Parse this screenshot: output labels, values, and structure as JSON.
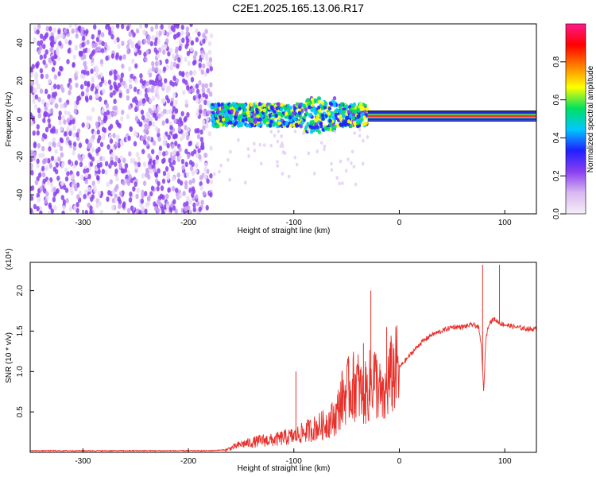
{
  "title": "C2E1.2025.165.13.06.R17",
  "colors": {
    "snr_line": "#e8302a",
    "colormap": [
      "#f6eef8",
      "#d9b8f0",
      "#8a3ff0",
      "#2020ff",
      "#00c8ff",
      "#00e060",
      "#ffff00",
      "#ff8000",
      "#ff0000",
      "#ff1a8c"
    ]
  },
  "chart_data": [
    {
      "id": "spectrogram",
      "type": "heatmap",
      "xlabel": "Height of straight line (km)",
      "ylabel": "Frequency (Hz)",
      "xlim": [
        -350,
        130
      ],
      "ylim": [
        -50,
        50
      ],
      "x_ticks": [
        -300,
        -200,
        -100,
        0,
        100
      ],
      "x_tick_labels": [
        "-300",
        "-200",
        "-100",
        "0",
        "100"
      ],
      "y_ticks": [
        -40,
        -20,
        0,
        20,
        40
      ],
      "y_tick_labels": [
        "-40",
        "-20",
        "0",
        "20",
        "40"
      ],
      "regions": [
        {
          "name": "noise",
          "x_range": [
            -350,
            -178
          ],
          "freq_range": [
            -50,
            50
          ],
          "amplitude": 0.12
        },
        {
          "name": "onset",
          "x_range": [
            -178,
            -30
          ],
          "freq_center": 2,
          "freq_halfwidth": 6,
          "amplitude": 0.4
        },
        {
          "name": "carrier",
          "x_range": [
            -30,
            130
          ],
          "freq_center": 1.5,
          "freq_halfwidth": 1.5,
          "amplitude": 0.85
        }
      ],
      "colorbar": {
        "label": "Normalized spectral amplitude",
        "range": [
          0,
          1
        ],
        "ticks": [
          0.0,
          0.2,
          0.4,
          0.6,
          0.8
        ],
        "tick_labels": [
          "0.0",
          "0.2",
          "0.4",
          "0.6",
          "0.8"
        ]
      }
    },
    {
      "id": "snr",
      "type": "line",
      "xlabel": "Height of straight line (km)",
      "ylabel": "SNR (10 * v/v)",
      "y_multiplier_label": "(x10⁴)",
      "xlim": [
        -350,
        130
      ],
      "ylim": [
        0,
        2.35
      ],
      "x_ticks": [
        -300,
        -200,
        -100,
        0,
        100
      ],
      "x_tick_labels": [
        "-300",
        "-200",
        "-100",
        "0",
        "100"
      ],
      "y_ticks": [
        0.5,
        1.0,
        1.5,
        2.0
      ],
      "y_tick_labels": [
        "0.5",
        "1.0",
        "1.5",
        "2.0"
      ],
      "series": [
        {
          "x": [
            -350,
            -300,
            -250,
            -200,
            -180,
            -165,
            -160,
            -150,
            -140,
            -130,
            -120,
            -110,
            -100,
            -90,
            -80,
            -70,
            -60,
            -55,
            -50,
            -45,
            -40,
            -35,
            -30,
            -25,
            -20,
            -15,
            -10,
            -5,
            0,
            10,
            20,
            30,
            40,
            50,
            60,
            70,
            75,
            78,
            80,
            82,
            85,
            90,
            95,
            100,
            110,
            120,
            130
          ],
          "y": [
            0.02,
            0.02,
            0.02,
            0.02,
            0.02,
            0.03,
            0.05,
            0.1,
            0.12,
            0.15,
            0.15,
            0.18,
            0.2,
            0.25,
            0.3,
            0.35,
            0.45,
            0.65,
            0.75,
            0.8,
            0.85,
            0.7,
            0.75,
            0.95,
            0.8,
            0.6,
            0.9,
            1.0,
            1.05,
            1.2,
            1.35,
            1.45,
            1.5,
            1.55,
            1.55,
            1.58,
            1.55,
            1.3,
            0.72,
            1.4,
            1.6,
            1.65,
            1.6,
            1.58,
            1.55,
            1.53,
            1.52
          ]
        }
      ],
      "spikes": [
        {
          "x": -98,
          "y": 1.0
        },
        {
          "x": -48,
          "y": 1.15
        },
        {
          "x": -34,
          "y": 1.35
        },
        {
          "x": -27,
          "y": 2.0
        },
        {
          "x": -12,
          "y": 1.55
        },
        {
          "x": -6,
          "y": 1.25
        },
        {
          "x": 79,
          "y": 2.32
        },
        {
          "x": 95,
          "y": 2.32
        }
      ]
    }
  ]
}
